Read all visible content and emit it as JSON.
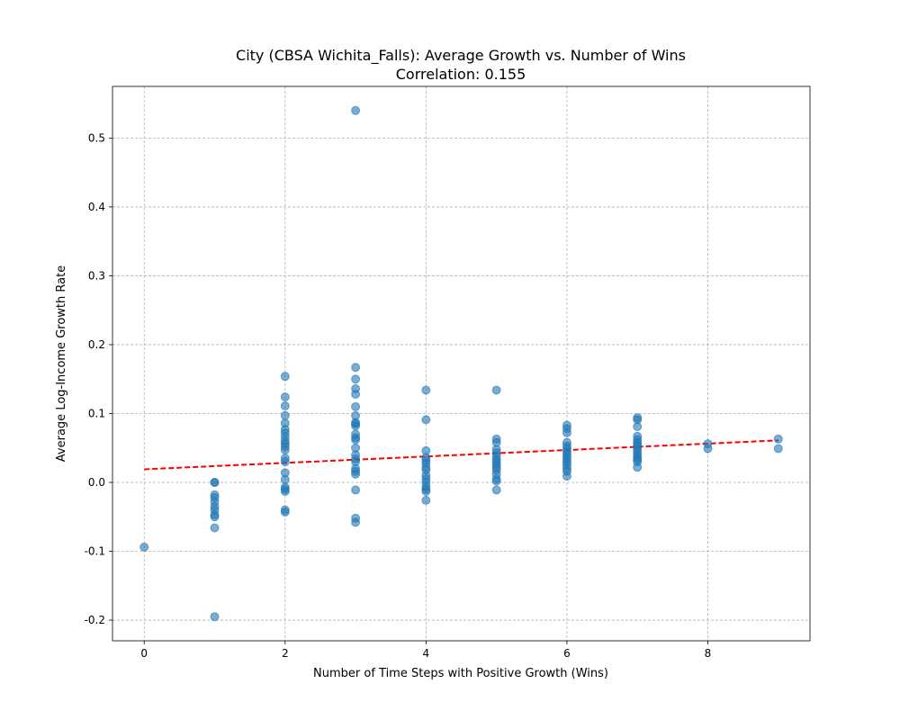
{
  "chart_data": {
    "type": "scatter",
    "title": "City (CBSA Wichita_Falls): Average Growth vs. Number of Wins",
    "subtitle": "Correlation: 0.155",
    "xlabel": "Number of Time Steps with Positive Growth (Wins)",
    "ylabel": "Average Log-Income Growth Rate",
    "xlim": [
      -0.45,
      9.45
    ],
    "ylim": [
      -0.23,
      0.575
    ],
    "xticks": [
      0,
      2,
      4,
      6,
      8
    ],
    "yticks": [
      -0.2,
      -0.1,
      0.0,
      0.1,
      0.2,
      0.3,
      0.4,
      0.5
    ],
    "grid": true,
    "point_color": "#1f77b4",
    "trend_color": "#ff0000",
    "points": [
      {
        "x": 0,
        "y": -0.094
      },
      {
        "x": 1,
        "y": -0.195
      },
      {
        "x": 1,
        "y": -0.066
      },
      {
        "x": 1,
        "y": -0.05
      },
      {
        "x": 1,
        "y": -0.047
      },
      {
        "x": 1,
        "y": -0.04
      },
      {
        "x": 1,
        "y": -0.035
      },
      {
        "x": 1,
        "y": -0.028
      },
      {
        "x": 1,
        "y": -0.022
      },
      {
        "x": 1,
        "y": -0.018
      },
      {
        "x": 1,
        "y": 0.0
      },
      {
        "x": 1,
        "y": 0.0
      },
      {
        "x": 2,
        "y": 0.154
      },
      {
        "x": 2,
        "y": 0.124
      },
      {
        "x": 2,
        "y": 0.111
      },
      {
        "x": 2,
        "y": 0.097
      },
      {
        "x": 2,
        "y": 0.086
      },
      {
        "x": 2,
        "y": 0.077
      },
      {
        "x": 2,
        "y": 0.072
      },
      {
        "x": 2,
        "y": 0.066
      },
      {
        "x": 2,
        "y": 0.06
      },
      {
        "x": 2,
        "y": 0.056
      },
      {
        "x": 2,
        "y": 0.052
      },
      {
        "x": 2,
        "y": 0.047
      },
      {
        "x": 2,
        "y": 0.035
      },
      {
        "x": 2,
        "y": 0.03
      },
      {
        "x": 2,
        "y": 0.014
      },
      {
        "x": 2,
        "y": 0.004
      },
      {
        "x": 2,
        "y": -0.007
      },
      {
        "x": 2,
        "y": -0.01
      },
      {
        "x": 2,
        "y": -0.013
      },
      {
        "x": 2,
        "y": -0.04
      },
      {
        "x": 2,
        "y": -0.043
      },
      {
        "x": 3,
        "y": 0.54
      },
      {
        "x": 3,
        "y": 0.167
      },
      {
        "x": 3,
        "y": 0.15
      },
      {
        "x": 3,
        "y": 0.136
      },
      {
        "x": 3,
        "y": 0.128
      },
      {
        "x": 3,
        "y": 0.11
      },
      {
        "x": 3,
        "y": 0.097
      },
      {
        "x": 3,
        "y": 0.087
      },
      {
        "x": 3,
        "y": 0.085
      },
      {
        "x": 3,
        "y": 0.082
      },
      {
        "x": 3,
        "y": 0.07
      },
      {
        "x": 3,
        "y": 0.065
      },
      {
        "x": 3,
        "y": 0.062
      },
      {
        "x": 3,
        "y": 0.05
      },
      {
        "x": 3,
        "y": 0.04
      },
      {
        "x": 3,
        "y": 0.034
      },
      {
        "x": 3,
        "y": 0.03
      },
      {
        "x": 3,
        "y": 0.02
      },
      {
        "x": 3,
        "y": 0.016
      },
      {
        "x": 3,
        "y": 0.012
      },
      {
        "x": 3,
        "y": -0.011
      },
      {
        "x": 3,
        "y": -0.052
      },
      {
        "x": 3,
        "y": -0.058
      },
      {
        "x": 4,
        "y": 0.134
      },
      {
        "x": 4,
        "y": 0.091
      },
      {
        "x": 4,
        "y": 0.046
      },
      {
        "x": 4,
        "y": 0.036
      },
      {
        "x": 4,
        "y": 0.032
      },
      {
        "x": 4,
        "y": 0.028
      },
      {
        "x": 4,
        "y": 0.022
      },
      {
        "x": 4,
        "y": 0.018
      },
      {
        "x": 4,
        "y": 0.01
      },
      {
        "x": 4,
        "y": 0.005
      },
      {
        "x": 4,
        "y": 0.0
      },
      {
        "x": 4,
        "y": -0.006
      },
      {
        "x": 4,
        "y": -0.01
      },
      {
        "x": 4,
        "y": -0.013
      },
      {
        "x": 4,
        "y": -0.026
      },
      {
        "x": 5,
        "y": 0.134
      },
      {
        "x": 5,
        "y": 0.063
      },
      {
        "x": 5,
        "y": 0.058
      },
      {
        "x": 5,
        "y": 0.048
      },
      {
        "x": 5,
        "y": 0.043
      },
      {
        "x": 5,
        "y": 0.038
      },
      {
        "x": 5,
        "y": 0.033
      },
      {
        "x": 5,
        "y": 0.03
      },
      {
        "x": 5,
        "y": 0.026
      },
      {
        "x": 5,
        "y": 0.022
      },
      {
        "x": 5,
        "y": 0.018
      },
      {
        "x": 5,
        "y": 0.012
      },
      {
        "x": 5,
        "y": 0.005
      },
      {
        "x": 5,
        "y": 0.002
      },
      {
        "x": 5,
        "y": -0.011
      },
      {
        "x": 6,
        "y": 0.083
      },
      {
        "x": 6,
        "y": 0.078
      },
      {
        "x": 6,
        "y": 0.072
      },
      {
        "x": 6,
        "y": 0.058
      },
      {
        "x": 6,
        "y": 0.053
      },
      {
        "x": 6,
        "y": 0.049
      },
      {
        "x": 6,
        "y": 0.045
      },
      {
        "x": 6,
        "y": 0.041
      },
      {
        "x": 6,
        "y": 0.037
      },
      {
        "x": 6,
        "y": 0.033
      },
      {
        "x": 6,
        "y": 0.029
      },
      {
        "x": 6,
        "y": 0.025
      },
      {
        "x": 6,
        "y": 0.02
      },
      {
        "x": 6,
        "y": 0.016
      },
      {
        "x": 6,
        "y": 0.009
      },
      {
        "x": 7,
        "y": 0.094
      },
      {
        "x": 7,
        "y": 0.091
      },
      {
        "x": 7,
        "y": 0.081
      },
      {
        "x": 7,
        "y": 0.067
      },
      {
        "x": 7,
        "y": 0.062
      },
      {
        "x": 7,
        "y": 0.058
      },
      {
        "x": 7,
        "y": 0.055
      },
      {
        "x": 7,
        "y": 0.052
      },
      {
        "x": 7,
        "y": 0.048
      },
      {
        "x": 7,
        "y": 0.044
      },
      {
        "x": 7,
        "y": 0.04
      },
      {
        "x": 7,
        "y": 0.036
      },
      {
        "x": 7,
        "y": 0.033
      },
      {
        "x": 7,
        "y": 0.03
      },
      {
        "x": 7,
        "y": 0.022
      },
      {
        "x": 8,
        "y": 0.056
      },
      {
        "x": 8,
        "y": 0.049
      },
      {
        "x": 9,
        "y": 0.063
      },
      {
        "x": 9,
        "y": 0.049
      }
    ],
    "trend_line": {
      "x": [
        0,
        9
      ],
      "y": [
        0.019,
        0.061
      ]
    }
  }
}
